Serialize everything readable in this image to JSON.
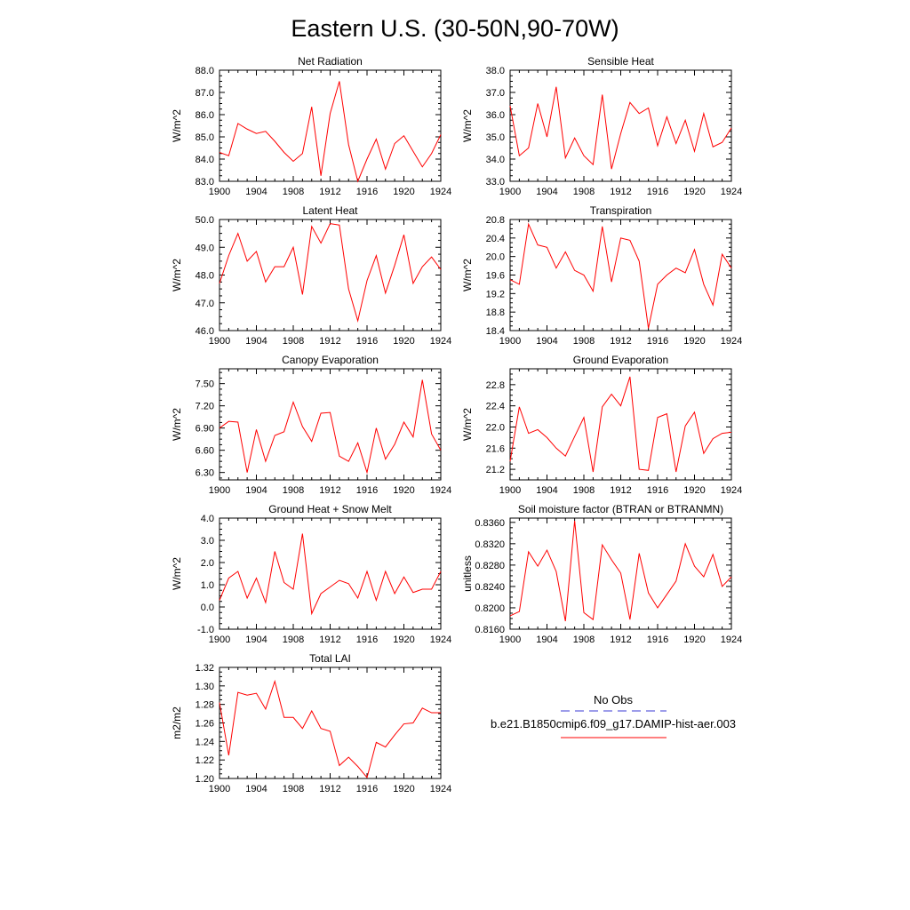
{
  "title": "Eastern U.S. (30-50N,90-70W)",
  "colors": {
    "model": "#ff0000",
    "obs": "#3b3bd6",
    "axis": "#000000"
  },
  "legend": {
    "obs_label": "No Obs",
    "model_label": "b.e21.B1850cmip6.f09_g17.DAMIP-hist-aer.003"
  },
  "chart_data": [
    {
      "type": "line",
      "title": "Net Radiation",
      "ylabel": "W/m^2",
      "xlim": [
        1900,
        1924
      ],
      "ylim": [
        83.0,
        88.0
      ],
      "xticks": [
        "1900",
        "1904",
        "1908",
        "1912",
        "1916",
        "1920",
        "1924"
      ],
      "yticks": [
        "83.0",
        "84.0",
        "85.0",
        "86.0",
        "87.0",
        "88.0"
      ],
      "series": [
        {
          "values": [
            84.3,
            84.15,
            85.6,
            85.35,
            85.15,
            85.25,
            84.8,
            84.3,
            83.9,
            84.25,
            86.35,
            83.25,
            86.05,
            87.5,
            84.65,
            83.0,
            84.0,
            84.9,
            83.55,
            84.7,
            85.05,
            84.35,
            83.65,
            84.25,
            85.1
          ]
        }
      ]
    },
    {
      "type": "line",
      "title": "Sensible Heat",
      "ylabel": "W/m^2",
      "xlim": [
        1900,
        1924
      ],
      "ylim": [
        33.0,
        38.0
      ],
      "xticks": [
        "1900",
        "1904",
        "1908",
        "1912",
        "1916",
        "1920",
        "1924"
      ],
      "yticks": [
        "33.0",
        "34.0",
        "35.0",
        "36.0",
        "37.0",
        "38.0"
      ],
      "series": [
        {
          "values": [
            36.4,
            34.15,
            34.5,
            36.5,
            35.0,
            37.25,
            34.05,
            34.95,
            34.15,
            33.75,
            36.9,
            33.55,
            35.15,
            36.55,
            36.05,
            36.3,
            34.6,
            35.9,
            34.7,
            35.75,
            34.35,
            36.05,
            34.55,
            34.75,
            35.4
          ]
        }
      ]
    },
    {
      "type": "line",
      "title": "Latent Heat",
      "ylabel": "W/m^2",
      "xlim": [
        1900,
        1924
      ],
      "ylim": [
        46.0,
        50.0
      ],
      "xticks": [
        "1900",
        "1904",
        "1908",
        "1912",
        "1916",
        "1920",
        "1924"
      ],
      "yticks": [
        "46.0",
        "47.0",
        "48.0",
        "49.0",
        "50.0"
      ],
      "series": [
        {
          "values": [
            47.7,
            48.7,
            49.5,
            48.5,
            48.85,
            47.75,
            48.3,
            48.3,
            49.0,
            47.3,
            49.75,
            49.15,
            49.85,
            49.8,
            47.5,
            46.35,
            47.8,
            48.7,
            47.35,
            48.35,
            49.45,
            47.7,
            48.3,
            48.65,
            48.2
          ]
        }
      ]
    },
    {
      "type": "line",
      "title": "Transpiration",
      "ylabel": "W/m^2",
      "xlim": [
        1900,
        1924
      ],
      "ylim": [
        18.4,
        20.8
      ],
      "xticks": [
        "1900",
        "1904",
        "1908",
        "1912",
        "1916",
        "1920",
        "1924"
      ],
      "yticks": [
        "18.4",
        "18.8",
        "19.2",
        "19.6",
        "20.0",
        "20.4",
        "20.8"
      ],
      "series": [
        {
          "values": [
            19.5,
            19.4,
            20.7,
            20.25,
            20.2,
            19.75,
            20.1,
            19.7,
            19.6,
            19.25,
            20.65,
            19.45,
            20.4,
            20.35,
            19.9,
            18.45,
            19.4,
            19.6,
            19.75,
            19.65,
            20.15,
            19.4,
            18.95,
            20.05,
            19.75
          ]
        }
      ]
    },
    {
      "type": "line",
      "title": "Canopy Evaporation",
      "ylabel": "W/m^2",
      "xlim": [
        1900,
        1924
      ],
      "ylim": [
        6.2,
        7.7
      ],
      "xticks": [
        "1900",
        "1904",
        "1908",
        "1912",
        "1916",
        "1920",
        "1924"
      ],
      "yticks": [
        "6.30",
        "6.60",
        "6.90",
        "7.20",
        "7.50"
      ],
      "series": [
        {
          "values": [
            6.9,
            6.99,
            6.98,
            6.3,
            6.88,
            6.45,
            6.8,
            6.85,
            7.25,
            6.92,
            6.72,
            7.1,
            7.11,
            6.52,
            6.45,
            6.7,
            6.3,
            6.9,
            6.48,
            6.68,
            6.98,
            6.78,
            7.55,
            6.82,
            6.6
          ]
        }
      ]
    },
    {
      "type": "line",
      "title": "Ground Evaporation",
      "ylabel": "W/m^2",
      "xlim": [
        1900,
        1924
      ],
      "ylim": [
        21.0,
        23.1
      ],
      "xticks": [
        "1900",
        "1904",
        "1908",
        "1912",
        "1916",
        "1920",
        "1924"
      ],
      "yticks": [
        "21.2",
        "21.6",
        "22.0",
        "22.4",
        "22.8"
      ],
      "series": [
        {
          "values": [
            21.35,
            22.38,
            21.88,
            21.95,
            21.8,
            21.6,
            21.45,
            21.82,
            22.18,
            21.15,
            22.38,
            22.62,
            22.4,
            22.95,
            21.2,
            21.18,
            22.18,
            22.25,
            21.15,
            22.02,
            22.28,
            21.5,
            21.78,
            21.88,
            21.9
          ]
        }
      ]
    },
    {
      "type": "line",
      "title": "Ground Heat + Snow Melt",
      "ylabel": "W/m^2",
      "xlim": [
        1900,
        1924
      ],
      "ylim": [
        -1.0,
        4.0
      ],
      "xticks": [
        "1900",
        "1904",
        "1908",
        "1912",
        "1916",
        "1920",
        "1924"
      ],
      "yticks": [
        "-1.0",
        "0.0",
        "1.0",
        "2.0",
        "3.0",
        "4.0"
      ],
      "series": [
        {
          "values": [
            0.3,
            1.3,
            1.6,
            0.4,
            1.3,
            0.2,
            2.5,
            1.1,
            0.8,
            3.3,
            -0.3,
            0.6,
            0.9,
            1.2,
            1.05,
            0.4,
            1.6,
            0.3,
            1.6,
            0.6,
            1.35,
            0.65,
            0.8,
            0.8,
            1.6
          ]
        }
      ]
    },
    {
      "type": "line",
      "title": "Soil moisture factor (BTRAN or BTRANMN)",
      "ylabel": "unitless",
      "xlim": [
        1900,
        1924
      ],
      "ylim": [
        0.816,
        0.8368
      ],
      "xticks": [
        "1900",
        "1904",
        "1908",
        "1912",
        "1916",
        "1920",
        "1924"
      ],
      "yticks": [
        "0.8160",
        "0.8200",
        "0.8240",
        "0.8280",
        "0.8320",
        "0.8360"
      ],
      "series": [
        {
          "values": [
            0.8185,
            0.8193,
            0.8305,
            0.8278,
            0.8308,
            0.8268,
            0.8175,
            0.8363,
            0.8191,
            0.8178,
            0.8318,
            0.829,
            0.8265,
            0.8178,
            0.8302,
            0.8228,
            0.82,
            0.8225,
            0.825,
            0.832,
            0.8278,
            0.8258,
            0.83,
            0.824,
            0.8258
          ]
        }
      ]
    },
    {
      "type": "line",
      "title": "Total LAI",
      "ylabel": "m2/m2",
      "xlim": [
        1900,
        1924
      ],
      "ylim": [
        1.2,
        1.32
      ],
      "xticks": [
        "1900",
        "1904",
        "1908",
        "1912",
        "1916",
        "1920",
        "1924"
      ],
      "yticks": [
        "1.20",
        "1.22",
        "1.24",
        "1.26",
        "1.28",
        "1.30",
        "1.32"
      ],
      "series": [
        {
          "values": [
            1.282,
            1.225,
            1.293,
            1.29,
            1.292,
            1.275,
            1.305,
            1.266,
            1.266,
            1.254,
            1.273,
            1.254,
            1.251,
            1.214,
            1.223,
            1.213,
            1.201,
            1.239,
            1.234,
            1.247,
            1.259,
            1.26,
            1.276,
            1.271,
            1.271
          ]
        }
      ]
    }
  ]
}
